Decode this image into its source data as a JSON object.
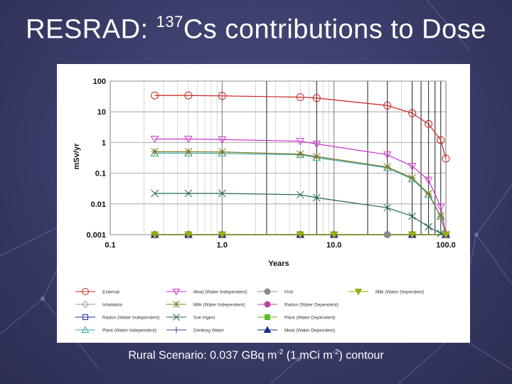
{
  "slide": {
    "title_prefix": "RESRAD: ",
    "title_sup": "137",
    "title_suffix": "Cs contributions to Dose",
    "caption": {
      "part1": "Rural Scenario: 0.037 GBq m",
      "sup1": "-2",
      "part2": " (1 mCi m",
      "sup2": "-2",
      "part3": ") contour"
    }
  },
  "chart_data": {
    "type": "line",
    "xscale": "log",
    "yscale": "log",
    "xlabel": "Years",
    "ylabel": "mSv/yr",
    "xlim": [
      0.1,
      100
    ],
    "ylim": [
      0.001,
      100
    ],
    "xticks": [
      "0.1",
      "1.0",
      "10.0",
      "100.0"
    ],
    "yticks": [
      "100",
      "10",
      "1",
      "0.1",
      "0.01",
      "0.001"
    ],
    "grid": true,
    "legend_position": "bottom",
    "series": [
      {
        "name": "External",
        "color": "#cc2222",
        "marker": "circle",
        "x": [
          0.25,
          0.5,
          1,
          5,
          7,
          30,
          50,
          70,
          90,
          100
        ],
        "y": [
          34,
          34,
          33,
          30,
          28,
          16,
          9,
          4,
          1.2,
          0.3
        ]
      },
      {
        "name": "Inhalation",
        "color": "#a0a0a0",
        "marker": "diamond",
        "x": [
          0.25,
          0.5,
          1,
          5,
          10,
          50,
          100
        ],
        "y": [
          0.001,
          0.001,
          0.001,
          0.001,
          0.001,
          0.001,
          0.001
        ]
      },
      {
        "name": "Radon (Water Independent)",
        "color": "#2a2aa0",
        "marker": "square",
        "x": [
          0.25,
          0.5,
          1,
          5,
          10,
          50,
          100
        ],
        "y": [
          0.001,
          0.001,
          0.001,
          0.001,
          0.001,
          0.001,
          0.001
        ]
      },
      {
        "name": "Plant (Water Independent)",
        "color": "#33aaaa",
        "marker": "triangle-up",
        "x": [
          0.25,
          0.5,
          1,
          5,
          7,
          30,
          50,
          70,
          90,
          100
        ],
        "y": [
          0.45,
          0.45,
          0.44,
          0.4,
          0.32,
          0.15,
          0.065,
          0.02,
          0.004,
          0.001
        ]
      },
      {
        "name": "Meat (Water Independent)",
        "color": "#cc33cc",
        "marker": "triangle-down",
        "x": [
          0.25,
          0.5,
          1,
          5,
          7,
          30,
          50,
          70,
          90,
          100
        ],
        "y": [
          1.3,
          1.3,
          1.25,
          1.1,
          0.9,
          0.4,
          0.17,
          0.06,
          0.008,
          0.001
        ]
      },
      {
        "name": "Milk (Water Independent)",
        "color": "#887722",
        "marker": "asterisk",
        "x": [
          0.25,
          0.5,
          1,
          5,
          7,
          30,
          50,
          70,
          90,
          100
        ],
        "y": [
          0.5,
          0.5,
          0.49,
          0.42,
          0.35,
          0.16,
          0.07,
          0.022,
          0.004,
          0.001
        ]
      },
      {
        "name": "Soil Ingest",
        "color": "#226655",
        "marker": "x",
        "x": [
          0.25,
          0.5,
          1,
          5,
          7,
          30,
          50,
          70,
          90,
          100
        ],
        "y": [
          0.022,
          0.022,
          0.022,
          0.02,
          0.016,
          0.0075,
          0.004,
          0.0018,
          0.0011,
          0.001
        ]
      },
      {
        "name": "Drinking Water",
        "color": "#5a3a8a",
        "marker": "plus",
        "x": [
          0.25,
          0.5,
          1,
          5,
          10,
          50,
          100
        ],
        "y": [
          0.001,
          0.001,
          0.001,
          0.001,
          0.001,
          0.001,
          0.001
        ]
      },
      {
        "name": "Fish",
        "color": "#888888",
        "marker": "filled-circle",
        "x": [
          0.25,
          0.5,
          1,
          5,
          10,
          30,
          50,
          100
        ],
        "y": [
          0.001,
          0.001,
          0.001,
          0.001,
          0.001,
          0.001,
          0.001,
          0.001
        ]
      },
      {
        "name": "Radon (Water Dependent)",
        "color": "#bb4499",
        "marker": "filled-circle",
        "x": [
          0.25,
          0.5,
          1,
          5,
          10,
          50,
          100
        ],
        "y": [
          0.001,
          0.001,
          0.001,
          0.001,
          0.001,
          0.001,
          0.001
        ]
      },
      {
        "name": "Plant (Water Dependent)",
        "color": "#55bb22",
        "marker": "filled-square",
        "x": [
          0.25,
          0.5,
          1,
          5,
          10,
          50,
          100
        ],
        "y": [
          0.001,
          0.001,
          0.001,
          0.001,
          0.001,
          0.001,
          0.001
        ]
      },
      {
        "name": "Meat (Water Dependent)",
        "color": "#1a2a88",
        "marker": "filled-triangle-up",
        "x": [
          0.25,
          0.5,
          1,
          5,
          10,
          50,
          100
        ],
        "y": [
          0.001,
          0.001,
          0.001,
          0.001,
          0.001,
          0.001,
          0.001
        ]
      },
      {
        "name": "Milk (Water Dependent)",
        "color": "#99aa11",
        "marker": "filled-triangle-down",
        "x": [
          0.25,
          0.5,
          1,
          5,
          10,
          50,
          100
        ],
        "y": [
          0.001,
          0.001,
          0.001,
          0.001,
          0.001,
          0.001,
          0.001
        ]
      }
    ]
  }
}
